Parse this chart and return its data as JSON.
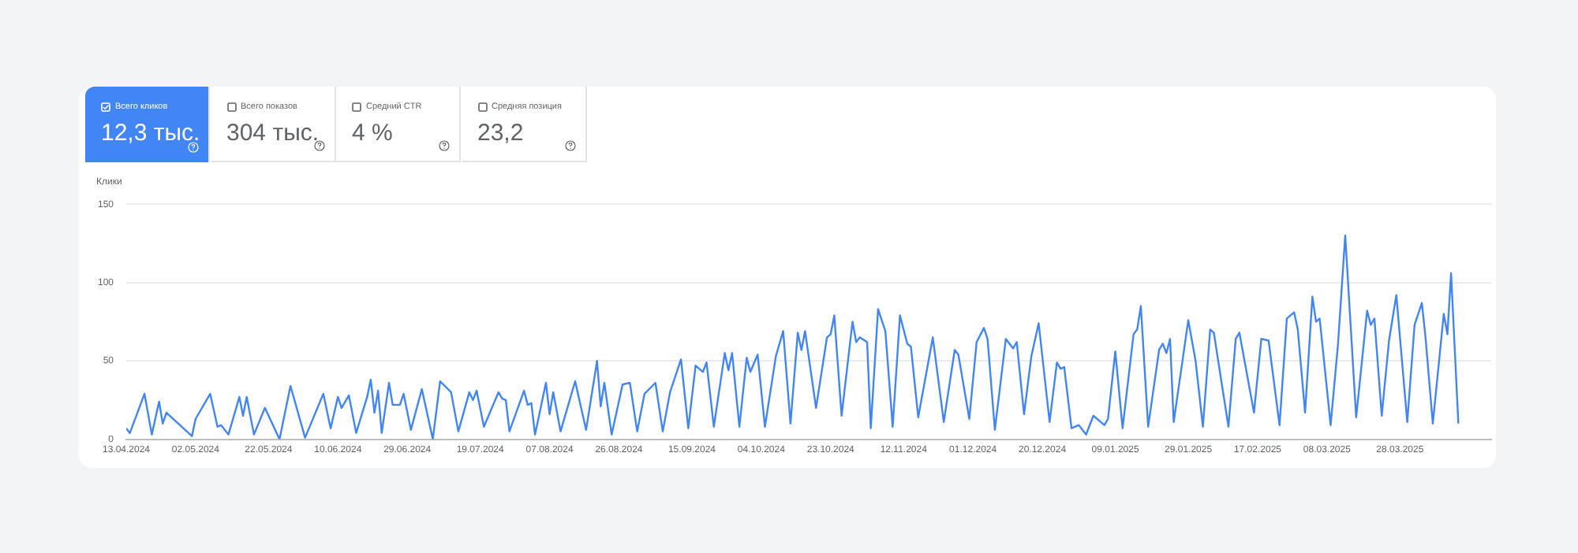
{
  "chart_data": [
    {
      "type": "other",
      "title": "Всего кликов",
      "annotations": [
        "12,3 тыс."
      ],
      "color": "#4285f4"
    },
    {
      "type": "other",
      "title": "Всего показов",
      "annotations": [
        "304 тыс."
      ]
    },
    {
      "type": "other",
      "title": "Средний CTR",
      "annotations": [
        "4 %"
      ]
    },
    {
      "type": "other",
      "title": "Средняя позиция",
      "annotations": [
        "23,2"
      ]
    },
    {
      "type": "line",
      "ylabel": "Клики",
      "marker": "none",
      "grid": "y",
      "xlim": [
        "2024-04-13",
        "2025-04-22"
      ],
      "ylim": [
        0,
        150
      ],
      "yticks": [
        0,
        50,
        100,
        150
      ],
      "xticks": [
        {
          "value": "2024-04-13",
          "label": "13.04.2024"
        },
        {
          "value": "2024-05-02",
          "label": "02.05.2024"
        },
        {
          "value": "2024-05-22",
          "label": "22.05.2024"
        },
        {
          "value": "2024-06-10",
          "label": "10.06.2024"
        },
        {
          "value": "2024-06-29",
          "label": "29.06.2024"
        },
        {
          "value": "2024-07-19",
          "label": "19.07.2024"
        },
        {
          "value": "2024-08-07",
          "label": "07.08.2024"
        },
        {
          "value": "2024-08-26",
          "label": "26.08.2024"
        },
        {
          "value": "2024-09-15",
          "label": "15.09.2024"
        },
        {
          "value": "2024-10-04",
          "label": "04.10.2024"
        },
        {
          "value": "2024-10-23",
          "label": "23.10.2024"
        },
        {
          "value": "2024-11-12",
          "label": "12.11.2024"
        },
        {
          "value": "2024-12-01",
          "label": "01.12.2024"
        },
        {
          "value": "2024-12-20",
          "label": "20.12.2024"
        },
        {
          "value": "2025-01-09",
          "label": "09.01.2025"
        },
        {
          "value": "2025-01-29",
          "label": "29.01.2025"
        },
        {
          "value": "2025-02-17",
          "label": "17.02.2025"
        },
        {
          "value": "2025-03-08",
          "label": "08.03.2025"
        },
        {
          "value": "2025-03-28",
          "label": "28.03.2025"
        }
      ],
      "series": [
        {
          "color": "#4285f4",
          "x": [
            "2024-04-13",
            "2024-04-14",
            "2024-04-18",
            "2024-04-20",
            "2024-04-22",
            "2024-04-23",
            "2024-04-24",
            "2024-05-01",
            "2024-05-02",
            "2024-05-06",
            "2024-05-08",
            "2024-05-09",
            "2024-05-11",
            "2024-05-14",
            "2024-05-15",
            "2024-05-16",
            "2024-05-18",
            "2024-05-21",
            "2024-05-25",
            "2024-05-28",
            "2024-06-01",
            "2024-06-06",
            "2024-06-08",
            "2024-06-10",
            "2024-06-11",
            "2024-06-13",
            "2024-06-15",
            "2024-06-18",
            "2024-06-19",
            "2024-06-20",
            "2024-06-21",
            "2024-06-22",
            "2024-06-24",
            "2024-06-25",
            "2024-06-27",
            "2024-06-28",
            "2024-06-30",
            "2024-07-03",
            "2024-07-06",
            "2024-07-08",
            "2024-07-11",
            "2024-07-13",
            "2024-07-16",
            "2024-07-17",
            "2024-07-18",
            "2024-07-20",
            "2024-07-24",
            "2024-07-25",
            "2024-07-26",
            "2024-07-27",
            "2024-07-31",
            "2024-08-01",
            "2024-08-02",
            "2024-08-03",
            "2024-08-06",
            "2024-08-07",
            "2024-08-08",
            "2024-08-10",
            "2024-08-14",
            "2024-08-17",
            "2024-08-20",
            "2024-08-21",
            "2024-08-22",
            "2024-08-24",
            "2024-08-27",
            "2024-08-29",
            "2024-08-31",
            "2024-09-02",
            "2024-09-05",
            "2024-09-07",
            "2024-09-09",
            "2024-09-12",
            "2024-09-14",
            "2024-09-16",
            "2024-09-18",
            "2024-09-19",
            "2024-09-21",
            "2024-09-24",
            "2024-09-25",
            "2024-09-26",
            "2024-09-28",
            "2024-09-30",
            "2024-10-01",
            "2024-10-03",
            "2024-10-05",
            "2024-10-08",
            "2024-10-10",
            "2024-10-12",
            "2024-10-14",
            "2024-10-15",
            "2024-10-16",
            "2024-10-19",
            "2024-10-22",
            "2024-10-23",
            "2024-10-24",
            "2024-10-26",
            "2024-10-29",
            "2024-10-30",
            "2024-10-31",
            "2024-11-02",
            "2024-11-03",
            "2024-11-05",
            "2024-11-07",
            "2024-11-09",
            "2024-11-11",
            "2024-11-13",
            "2024-11-14",
            "2024-11-16",
            "2024-11-20",
            "2024-11-23",
            "2024-11-26",
            "2024-11-27",
            "2024-11-30",
            "2024-12-02",
            "2024-12-04",
            "2024-12-05",
            "2024-12-07",
            "2024-12-10",
            "2024-12-12",
            "2024-12-13",
            "2024-12-15",
            "2024-12-17",
            "2024-12-19",
            "2024-12-22",
            "2024-12-24",
            "2024-12-25",
            "2024-12-26",
            "2024-12-28",
            "2024-12-30",
            "2025-01-01",
            "2025-01-03",
            "2025-01-06",
            "2025-01-07",
            "2025-01-09",
            "2025-01-11",
            "2025-01-14",
            "2025-01-15",
            "2025-01-16",
            "2025-01-18",
            "2025-01-21",
            "2025-01-22",
            "2025-01-23",
            "2025-01-24",
            "2025-01-25",
            "2025-01-29",
            "2025-01-31",
            "2025-02-02",
            "2025-02-04",
            "2025-02-05",
            "2025-02-09",
            "2025-02-11",
            "2025-02-12",
            "2025-02-16",
            "2025-02-18",
            "2025-02-20",
            "2025-02-23",
            "2025-02-25",
            "2025-02-27",
            "2025-02-28",
            "2025-03-02",
            "2025-03-04",
            "2025-03-05",
            "2025-03-06",
            "2025-03-09",
            "2025-03-11",
            "2025-03-13",
            "2025-03-16",
            "2025-03-19",
            "2025-03-20",
            "2025-03-21",
            "2025-03-23",
            "2025-03-25",
            "2025-03-27",
            "2025-03-30",
            "2025-04-01",
            "2025-04-03",
            "2025-04-04",
            "2025-04-06",
            "2025-04-09",
            "2025-04-10",
            "2025-04-11",
            "2025-04-13"
          ],
          "values": [
            7,
            4,
            29,
            3,
            24,
            10,
            17,
            2,
            13,
            29,
            8,
            9,
            3,
            27,
            15,
            27,
            3,
            20,
            0,
            34,
            1,
            29,
            7,
            27,
            20,
            28,
            4,
            27,
            38,
            17,
            31,
            4,
            36,
            22,
            22,
            29,
            6,
            32,
            0,
            37,
            30,
            5,
            30,
            25,
            31,
            8,
            30,
            26,
            25,
            5,
            31,
            22,
            23,
            3,
            36,
            16,
            30,
            5,
            37,
            6,
            50,
            21,
            36,
            3,
            35,
            36,
            5,
            29,
            36,
            5,
            30,
            51,
            7,
            47,
            43,
            49,
            8,
            55,
            44,
            55,
            8,
            52,
            43,
            54,
            8,
            53,
            69,
            10,
            68,
            57,
            69,
            20,
            65,
            67,
            79,
            15,
            75,
            62,
            65,
            62,
            7,
            83,
            69,
            8,
            79,
            61,
            59,
            14,
            65,
            11,
            57,
            54,
            13,
            62,
            71,
            64,
            6,
            64,
            58,
            62,
            16,
            53,
            74,
            11,
            49,
            45,
            46,
            7,
            9,
            3,
            15,
            9,
            13,
            56,
            7,
            67,
            70,
            85,
            8,
            57,
            61,
            55,
            64,
            11,
            76,
            50,
            8,
            70,
            68,
            8,
            64,
            68,
            17,
            64,
            63,
            9,
            77,
            81,
            70,
            17,
            91,
            75,
            77,
            9,
            60,
            130,
            14,
            82,
            73,
            77,
            15,
            63,
            92,
            11,
            73,
            87,
            65,
            10,
            80,
            67,
            106,
            10
          ]
        }
      ]
    }
  ]
}
